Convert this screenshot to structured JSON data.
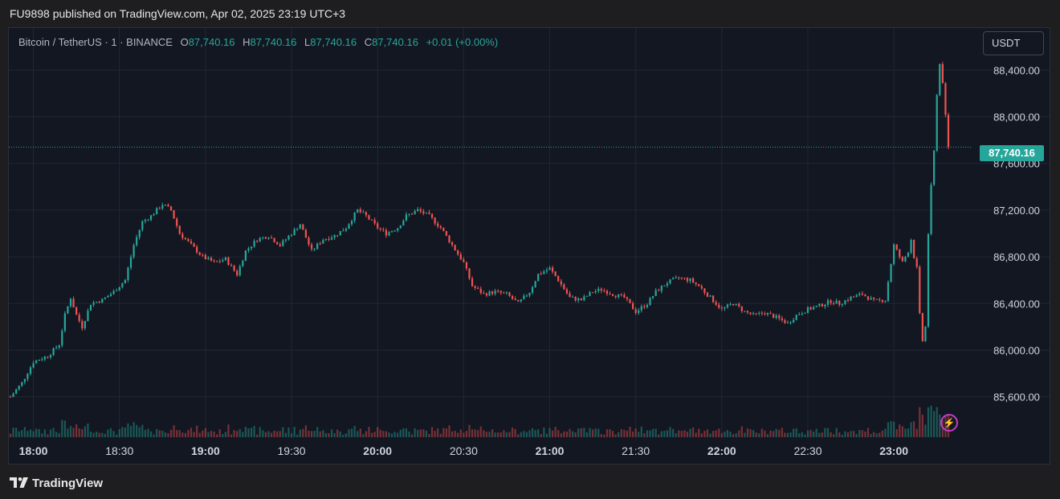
{
  "published_line": "FU9898 published on TradingView.com, Apr 02, 2025 23:19 UTC+3",
  "legend": {
    "symbol": "Bitcoin / TetherUS · 1 · BINANCE",
    "o_label": "O",
    "o_value": "87,740.16",
    "h_label": "H",
    "h_value": "87,740.16",
    "l_label": "L",
    "l_value": "87,740.16",
    "c_label": "C",
    "c_value": "87,740.16",
    "change": "+0.01 (+0.00%)"
  },
  "currency_button": "USDT",
  "current_price_label": "87,740.16",
  "footer_brand": "TradingView",
  "colors": {
    "up": "#26a69a",
    "down": "#ef5350",
    "background": "#131722",
    "grid": "#232734",
    "accent_bolt": "#c23cd0"
  },
  "chart_data": {
    "type": "candlestick",
    "title": "Bitcoin / TetherUS · 1 · BINANCE",
    "x_start": "17:52",
    "x_end": "23:19",
    "x_ticks": [
      "18:00",
      "18:30",
      "19:00",
      "19:30",
      "20:00",
      "20:30",
      "21:00",
      "21:30",
      "22:00",
      "22:30",
      "23:00"
    ],
    "x_ticks_bold": [
      "18:00",
      "19:00",
      "20:00",
      "21:00",
      "22:00",
      "23:00"
    ],
    "y_ticks": [
      "88,400.00",
      "88,000.00",
      "87,600.00",
      "87,200.00",
      "86,800.00",
      "86,400.00",
      "86,000.00",
      "85,600.00"
    ],
    "y_tick_values": [
      88400,
      88000,
      87600,
      87200,
      86800,
      86400,
      86000,
      85600
    ],
    "ylim": [
      85240,
      88760
    ],
    "grid": true,
    "current_price": 87740.16,
    "close_path": [
      [
        "17:52",
        85600
      ],
      [
        "17:56",
        85720
      ],
      [
        "18:00",
        85900
      ],
      [
        "18:05",
        85950
      ],
      [
        "18:09",
        86050
      ],
      [
        "18:11",
        86300
      ],
      [
        "18:13",
        86450
      ],
      [
        "18:15",
        86300
      ],
      [
        "18:17",
        86200
      ],
      [
        "18:20",
        86400
      ],
      [
        "18:24",
        86430
      ],
      [
        "18:28",
        86500
      ],
      [
        "18:32",
        86600
      ],
      [
        "18:35",
        86900
      ],
      [
        "18:38",
        87100
      ],
      [
        "18:41",
        87150
      ],
      [
        "18:45",
        87250
      ],
      [
        "18:48",
        87200
      ],
      [
        "18:51",
        87000
      ],
      [
        "18:55",
        86900
      ],
      [
        "18:59",
        86800
      ],
      [
        "19:03",
        86750
      ],
      [
        "19:07",
        86780
      ],
      [
        "19:11",
        86650
      ],
      [
        "19:14",
        86850
      ],
      [
        "19:18",
        86950
      ],
      [
        "19:22",
        86980
      ],
      [
        "19:26",
        86900
      ],
      [
        "19:30",
        87000
      ],
      [
        "19:33",
        87080
      ],
      [
        "19:37",
        86850
      ],
      [
        "19:41",
        86950
      ],
      [
        "19:45",
        86980
      ],
      [
        "19:49",
        87050
      ],
      [
        "19:53",
        87200
      ],
      [
        "19:56",
        87150
      ],
      [
        "20:00",
        87050
      ],
      [
        "20:03",
        87000
      ],
      [
        "20:07",
        87050
      ],
      [
        "20:10",
        87150
      ],
      [
        "20:14",
        87200
      ],
      [
        "20:18",
        87150
      ],
      [
        "20:22",
        87050
      ],
      [
        "20:26",
        86900
      ],
      [
        "20:30",
        86750
      ],
      [
        "20:33",
        86550
      ],
      [
        "20:37",
        86480
      ],
      [
        "20:41",
        86500
      ],
      [
        "20:45",
        86480
      ],
      [
        "20:49",
        86400
      ],
      [
        "20:53",
        86500
      ],
      [
        "20:56",
        86650
      ],
      [
        "21:00",
        86700
      ],
      [
        "21:03",
        86600
      ],
      [
        "21:07",
        86450
      ],
      [
        "21:11",
        86430
      ],
      [
        "21:15",
        86500
      ],
      [
        "21:18",
        86520
      ],
      [
        "21:22",
        86480
      ],
      [
        "21:26",
        86450
      ],
      [
        "21:30",
        86330
      ],
      [
        "21:34",
        86400
      ],
      [
        "21:37",
        86500
      ],
      [
        "21:41",
        86580
      ],
      [
        "21:45",
        86620
      ],
      [
        "21:49",
        86600
      ],
      [
        "21:52",
        86550
      ],
      [
        "21:56",
        86450
      ],
      [
        "22:00",
        86350
      ],
      [
        "22:04",
        86400
      ],
      [
        "22:08",
        86330
      ],
      [
        "22:11",
        86300
      ],
      [
        "22:15",
        86320
      ],
      [
        "22:19",
        86280
      ],
      [
        "22:23",
        86230
      ],
      [
        "22:26",
        86300
      ],
      [
        "22:30",
        86350
      ],
      [
        "22:34",
        86380
      ],
      [
        "22:38",
        86420
      ],
      [
        "22:41",
        86400
      ],
      [
        "22:45",
        86450
      ],
      [
        "22:49",
        86480
      ],
      [
        "22:53",
        86420
      ],
      [
        "22:57",
        86430
      ],
      [
        "23:00",
        86900
      ],
      [
        "23:03",
        86750
      ],
      [
        "23:05",
        86850
      ],
      [
        "23:06",
        86950
      ],
      [
        "23:07",
        86800
      ],
      [
        "23:08",
        86700
      ],
      [
        "23:09",
        86300
      ],
      [
        "23:10",
        86080
      ],
      [
        "23:11",
        86200
      ],
      [
        "23:12",
        87000
      ],
      [
        "23:13",
        87400
      ],
      [
        "23:14",
        87700
      ],
      [
        "23:15",
        88200
      ],
      [
        "23:16",
        88450
      ],
      [
        "23:17",
        88300
      ],
      [
        "23:18",
        88000
      ],
      [
        "23:19",
        87740.16
      ]
    ],
    "volume_max": 56
  }
}
